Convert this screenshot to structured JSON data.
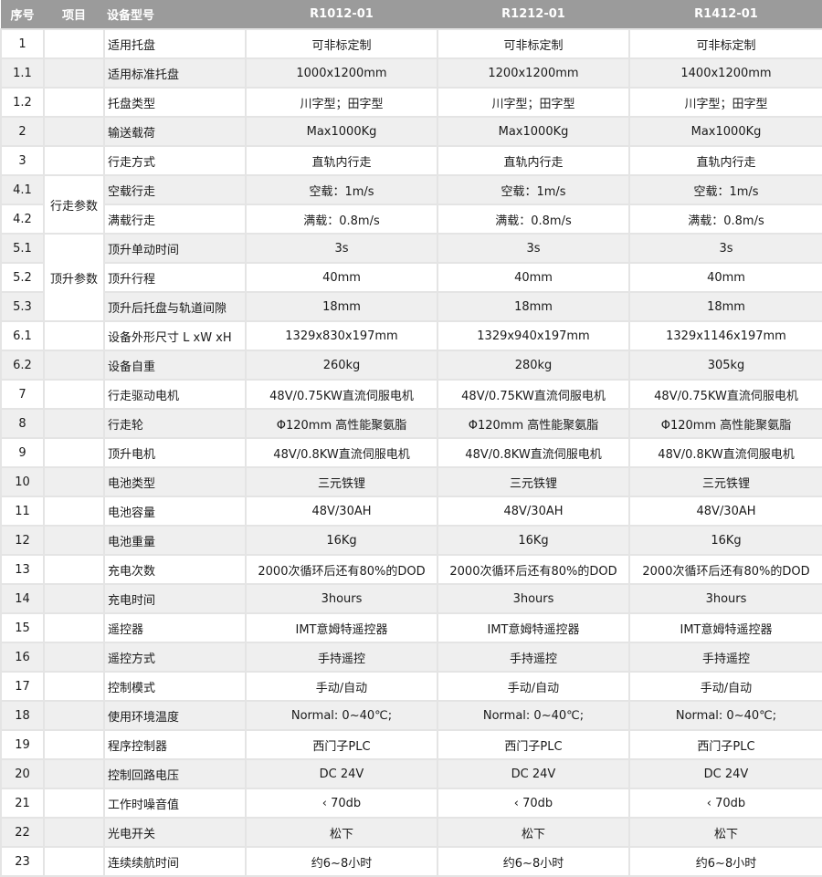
{
  "header": {
    "no": "序号",
    "item": "项目",
    "model": "设备型号",
    "models": [
      "R1012-01",
      "R1212-01",
      "R1412-01"
    ]
  },
  "rows": [
    {
      "no": "1",
      "item": "",
      "name": "适用托盘",
      "values": [
        "可非标定制",
        "可非标定制",
        "可非标定制"
      ]
    },
    {
      "no": "1.1",
      "item": "",
      "name": "适用标准托盘",
      "values": [
        "1000x1200mm",
        "1200x1200mm",
        "1400x1200mm"
      ]
    },
    {
      "no": "1.2",
      "item": "",
      "name": "托盘类型",
      "values": [
        "川字型；田字型",
        "川字型；田字型",
        "川字型；田字型"
      ]
    },
    {
      "no": "2",
      "item": "",
      "name": "输送载荷",
      "values": [
        "Max1000Kg",
        "Max1000Kg",
        "Max1000Kg"
      ]
    },
    {
      "no": "3",
      "item": "",
      "name": "行走方式",
      "values": [
        "直轨内行走",
        "直轨内行走",
        "直轨内行走"
      ]
    },
    {
      "no": "4.1",
      "item": "行走参数",
      "span": 2,
      "name": "空载行走",
      "values": [
        "空载：1m/s",
        "空载：1m/s",
        "空载：1m/s"
      ]
    },
    {
      "no": "4.2",
      "name": "满载行走",
      "values": [
        "满载：0.8m/s",
        "满载：0.8m/s",
        "满载：0.8m/s"
      ]
    },
    {
      "no": "5.1",
      "item": "顶升参数",
      "span": 3,
      "name": "顶升单动时间",
      "values": [
        "3s",
        "3s",
        "3s"
      ]
    },
    {
      "no": "5.2",
      "name": "顶升行程",
      "values": [
        "40mm",
        "40mm",
        "40mm"
      ]
    },
    {
      "no": "5.3",
      "name": "顶升后托盘与轨道间隙",
      "values": [
        "18mm",
        "18mm",
        "18mm"
      ]
    },
    {
      "no": "6.1",
      "item": "",
      "name": "设备外形尺寸 L xW xH",
      "values": [
        "1329x830x197mm",
        "1329x940x197mm",
        "1329x1146x197mm"
      ]
    },
    {
      "no": "6.2",
      "item": "",
      "name": "设备自重",
      "values": [
        "260kg",
        "280kg",
        "305kg"
      ]
    },
    {
      "no": "7",
      "item": "",
      "name": "行走驱动电机",
      "values": [
        "48V/0.75KW直流伺服电机",
        "48V/0.75KW直流伺服电机",
        "48V/0.75KW直流伺服电机"
      ]
    },
    {
      "no": "8",
      "item": "",
      "name": "行走轮",
      "values": [
        "Φ120mm 高性能聚氨脂",
        "Φ120mm 高性能聚氨脂",
        "Φ120mm 高性能聚氨脂"
      ]
    },
    {
      "no": "9",
      "item": "",
      "name": "顶升电机",
      "values": [
        "48V/0.8KW直流伺服电机",
        "48V/0.8KW直流伺服电机",
        "48V/0.8KW直流伺服电机"
      ]
    },
    {
      "no": "10",
      "item": "",
      "name": "电池类型",
      "values": [
        "三元铁锂",
        "三元铁锂",
        "三元铁锂"
      ]
    },
    {
      "no": "11",
      "item": "",
      "name": "电池容量",
      "values": [
        "48V/30AH",
        "48V/30AH",
        "48V/30AH"
      ]
    },
    {
      "no": "12",
      "item": "",
      "name": "电池重量",
      "values": [
        "16Kg",
        "16Kg",
        "16Kg"
      ]
    },
    {
      "no": "13",
      "item": "",
      "name": "充电次数",
      "values": [
        "2000次循环后还有80%的DOD",
        "2000次循环后还有80%的DOD",
        "2000次循环后还有80%的DOD"
      ]
    },
    {
      "no": "14",
      "item": "",
      "name": "充电时间",
      "values": [
        "3hours",
        "3hours",
        "3hours"
      ]
    },
    {
      "no": "15",
      "item": "",
      "name": "遥控器",
      "values": [
        "IMT意姆特遥控器",
        "IMT意姆特遥控器",
        "IMT意姆特遥控器"
      ]
    },
    {
      "no": "16",
      "item": "",
      "name": "遥控方式",
      "values": [
        "手持遥控",
        "手持遥控",
        "手持遥控"
      ]
    },
    {
      "no": "17",
      "item": "",
      "name": "控制模式",
      "values": [
        "手动/自动",
        "手动/自动",
        "手动/自动"
      ]
    },
    {
      "no": "18",
      "item": "",
      "name": "使用环境温度",
      "values": [
        "Normal: 0~40℃;",
        "Normal: 0~40℃;",
        "Normal: 0~40℃;"
      ]
    },
    {
      "no": "19",
      "item": "",
      "name": "程序控制器",
      "values": [
        "西门子PLC",
        "西门子PLC",
        "西门子PLC"
      ]
    },
    {
      "no": "20",
      "item": "",
      "name": "控制回路电压",
      "values": [
        "DC 24V",
        "DC 24V",
        "DC 24V"
      ]
    },
    {
      "no": "21",
      "item": "",
      "name": "工作时噪音值",
      "values": [
        "‹ 70db",
        "‹ 70db",
        "‹ 70db"
      ]
    },
    {
      "no": "22",
      "item": "",
      "name": "光电开关",
      "values": [
        "松下",
        "松下",
        "松下"
      ]
    },
    {
      "no": "23",
      "item": "",
      "name": "连续续航时间",
      "values": [
        "约6~8小时",
        "约6~8小时",
        "约6~8小时"
      ]
    }
  ]
}
